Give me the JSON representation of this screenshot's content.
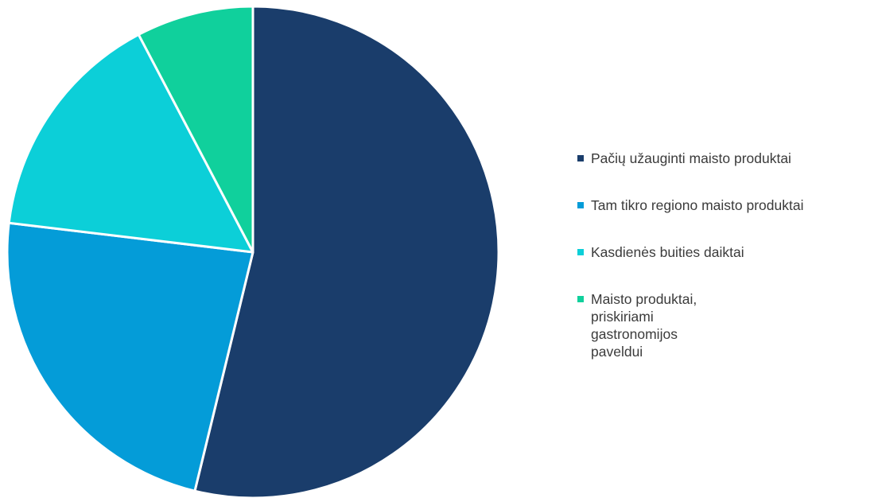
{
  "chart_data": {
    "type": "pie",
    "start_angle_deg": 0,
    "direction": "clockwise",
    "slices": [
      {
        "label": "Pačių užauginti maisto produktai",
        "value": 53.8,
        "color": "#1a3d6b"
      },
      {
        "label": "Tam tikro regiono maisto produktai",
        "value": 23.1,
        "color": "#049cd8"
      },
      {
        "label": "Kasdienės buities daiktai",
        "value": 15.4,
        "color": "#0ccfd8"
      },
      {
        "label": "Maisto produktai, priskiriami gastronomijos paveldui",
        "value": 7.7,
        "color": "#10d09c"
      }
    ],
    "legend_position": "right"
  }
}
